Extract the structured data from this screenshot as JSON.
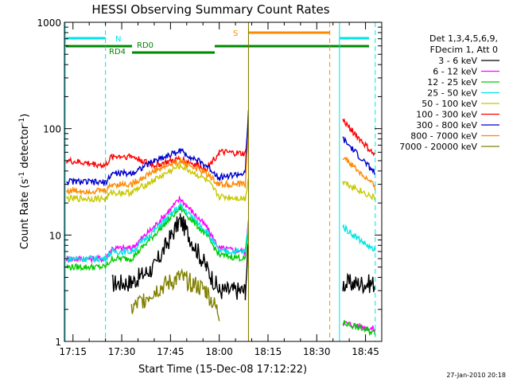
{
  "chart_data": {
    "type": "line",
    "title": "HESSI Observing Summary Count Rates",
    "xlabel": "Start Time (15-Dec-08 17:12:22)",
    "ylabel": "Count Rate (s",
    "ylabel_sup": "-1",
    "ylabel_tail": " detector",
    "ylabel_sup2": "-1",
    "ylabel_close": ")",
    "yscale": "log",
    "ylim": [
      1,
      1000
    ],
    "xlim": [
      "17:12:22",
      "18:50:00"
    ],
    "ytick_labels": [
      "1",
      "10",
      "100",
      "1000"
    ],
    "xtick_labels": [
      "17:15",
      "17:30",
      "17:45",
      "18:00",
      "18:15",
      "18:30",
      "18:45"
    ],
    "legend_header": [
      "Det 1,3,4,5,6,9,",
      "FDecim 1, Att 0"
    ],
    "legend_position": "right",
    "footer_date": "27-Jan-2010 20:18",
    "series": [
      {
        "name": "3 - 6 keV",
        "color": "#000000",
        "x": [
          "17:13",
          "17:25",
          "17:27",
          "17:33",
          "17:40",
          "17:48",
          "17:56",
          "18:00",
          "18:08",
          "18:09",
          "18:36",
          "18:38",
          "18:48"
        ],
        "values": [
          null,
          null,
          3.5,
          3.6,
          5,
          14,
          5,
          3,
          3,
          8,
          null,
          3.5,
          3.5
        ]
      },
      {
        "name": "6 - 12 keV",
        "color": "#ff00ff",
        "x": [
          "17:13",
          "17:25",
          "17:27",
          "17:33",
          "17:40",
          "17:48",
          "17:56",
          "18:00",
          "18:08",
          "18:09",
          "18:36",
          "18:38",
          "18:48"
        ],
        "values": [
          6,
          6,
          7.5,
          7.5,
          12,
          22,
          12,
          7.5,
          7,
          14,
          null,
          1.5,
          1.3
        ]
      },
      {
        "name": "12 - 25 keV",
        "color": "#00cc00",
        "x": [
          "17:13",
          "17:25",
          "17:27",
          "17:33",
          "17:40",
          "17:48",
          "17:56",
          "18:00",
          "18:08",
          "18:09",
          "18:36",
          "18:38",
          "18:48"
        ],
        "values": [
          5,
          5,
          6,
          6,
          10,
          18,
          10,
          6.5,
          6,
          11,
          null,
          1.5,
          1.2
        ]
      },
      {
        "name": "25 - 50 keV",
        "color": "#00e5e5",
        "x": [
          "17:13",
          "17:25",
          "17:27",
          "17:33",
          "17:40",
          "17:48",
          "17:56",
          "18:00",
          "18:08",
          "18:09",
          "18:36",
          "18:38",
          "18:48"
        ],
        "values": [
          6,
          6,
          7,
          7,
          11,
          19,
          11,
          7,
          7,
          13,
          null,
          12,
          7
        ]
      },
      {
        "name": "50 - 100 keV",
        "color": "#c8c800",
        "x": [
          "17:13",
          "17:25",
          "17:27",
          "17:33",
          "17:40",
          "17:48",
          "17:56",
          "18:00",
          "18:08",
          "18:09",
          "18:36",
          "18:38",
          "18:48"
        ],
        "values": [
          22,
          22,
          25,
          25,
          33,
          45,
          33,
          23,
          22,
          35,
          null,
          32,
          22
        ]
      },
      {
        "name": "100 - 300 keV",
        "color": "#ff0000",
        "x": [
          "17:13",
          "17:25",
          "17:27",
          "17:33",
          "17:40",
          "17:48",
          "17:56",
          "18:00",
          "18:08",
          "18:09",
          "18:36",
          "18:38",
          "18:48"
        ],
        "values": [
          50,
          45,
          55,
          55,
          45,
          52,
          42,
          60,
          58,
          110,
          null,
          120,
          55
        ]
      },
      {
        "name": "300 - 800 keV",
        "color": "#0000cc",
        "x": [
          "17:13",
          "17:25",
          "17:27",
          "17:33",
          "17:40",
          "17:48",
          "17:56",
          "18:00",
          "18:08",
          "18:09",
          "18:36",
          "18:38",
          "18:48"
        ],
        "values": [
          32,
          31,
          38,
          38,
          50,
          62,
          45,
          35,
          38,
          150,
          null,
          80,
          38
        ]
      },
      {
        "name": "800 - 7000 keV",
        "color": "#ff8800",
        "x": [
          "17:13",
          "17:25",
          "17:27",
          "17:33",
          "17:40",
          "17:48",
          "17:56",
          "18:00",
          "18:08",
          "18:09",
          "18:36",
          "18:38",
          "18:48"
        ],
        "values": [
          26,
          26,
          30,
          30,
          40,
          50,
          38,
          30,
          30,
          90,
          null,
          55,
          28
        ]
      },
      {
        "name": "7000 - 20000 keV",
        "color": "#808000",
        "x": [
          "17:13",
          "17:25",
          "17:27",
          "17:33",
          "17:40",
          "17:48",
          "17:56",
          "18:00",
          "18:08",
          "18:09",
          "18:36",
          "18:38",
          "18:48"
        ],
        "values": [
          null,
          null,
          null,
          2,
          3,
          4,
          3,
          1.8,
          null,
          null,
          null,
          null,
          null
        ]
      }
    ],
    "annotations": {
      "N": {
        "label": "N",
        "color": "#00e5e5",
        "level": 700
      },
      "S": {
        "label": "S",
        "color": "#ff8800",
        "level": 820
      },
      "RD0": {
        "label": "RD0",
        "color": "#008800"
      },
      "RD4": {
        "label": "RD4",
        "color": "#008800"
      }
    }
  }
}
